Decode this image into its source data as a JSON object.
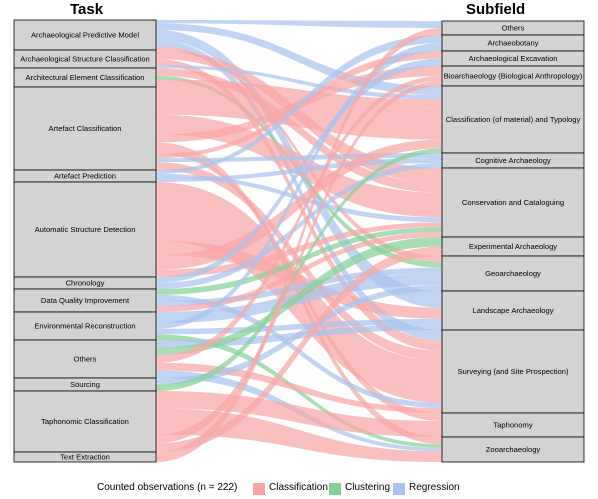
{
  "titles": {
    "left": "Task",
    "right": "Subfield"
  },
  "colors": {
    "classification": "#f8a6a6",
    "clustering": "#86d195",
    "regression": "#a9c3ef",
    "node_fill": "#d3d3d3",
    "node_stroke": "#000000"
  },
  "tasks": [
    "Archaeological Predictive Model",
    "Archaeological Structure Classification",
    "Architectural Element Classification",
    "Artefact Classification",
    "Artefact Prediction",
    "Automatic Structure Detection",
    "Chronology",
    "Data Quality Improvement",
    "Environmental Reconstruction",
    "Others",
    "Sourcing",
    "Taphonomic Classification",
    "Text Extraction"
  ],
  "subfields": [
    "Others",
    "Archaeobotany",
    "Archaeological Excavation",
    "Bioarchaeology (Biological Anthropology)",
    "Classification (of material) and Typology",
    "Cognitive Archaeology",
    "Conservation and Cataloguing",
    "Experimental Archaeology",
    "Geoarchaeology",
    "Landscape Archaeology",
    "Surveying (and Site Prospection)",
    "Taphonomy",
    "Zooarchaeology"
  ],
  "legend": {
    "title": "Counted observations (n = 222)",
    "items": [
      {
        "label": "Classification",
        "color": "#f8a6a6"
      },
      {
        "label": "Clustering",
        "color": "#86d195"
      },
      {
        "label": "Regression",
        "color": "#a9c3ef"
      }
    ]
  }
}
